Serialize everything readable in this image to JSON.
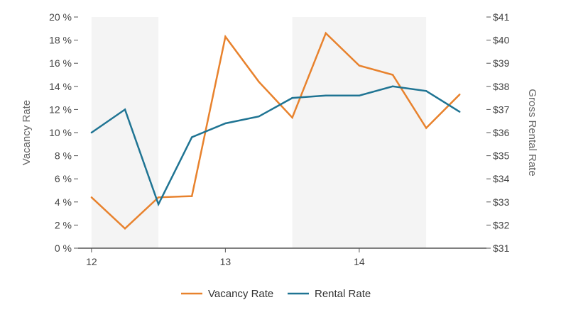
{
  "chart_data": {
    "type": "line",
    "x": [
      12,
      12.25,
      12.5,
      12.75,
      13,
      13.25,
      13.5,
      13.75,
      14,
      14.25,
      14.5,
      14.75
    ],
    "xticks": [
      12,
      13,
      14
    ],
    "xtick_labels": [
      "12",
      "13",
      "14"
    ],
    "xlim": [
      11.9,
      14.95
    ],
    "shaded_bands": [
      [
        12,
        12.5
      ],
      [
        13.5,
        14.5
      ]
    ],
    "ylabel": "Vacancy Rate",
    "ylim": [
      0,
      20
    ],
    "yticks": [
      0,
      2,
      4,
      6,
      8,
      10,
      12,
      14,
      16,
      18,
      20
    ],
    "ytick_labels": [
      "0 %",
      "2 %",
      "4 %",
      "6 %",
      "8 %",
      "10 %",
      "12 %",
      "14 %",
      "16 %",
      "18 %",
      "20 %"
    ],
    "y2label": "Gross Rental Rate",
    "y2lim": [
      31,
      41
    ],
    "y2ticks": [
      31,
      32,
      33,
      34,
      35,
      36,
      37,
      38,
      39,
      40,
      41
    ],
    "y2tick_labels": [
      "$31",
      "$32",
      "$33",
      "$34",
      "$35",
      "$36",
      "$37",
      "$38",
      "$39",
      "$40",
      "$41"
    ],
    "series": [
      {
        "name": "Vacancy Rate",
        "axis": "left",
        "color": "#E8822D",
        "values": [
          4.4,
          1.7,
          4.4,
          4.5,
          18.3,
          14.4,
          11.3,
          18.6,
          15.8,
          15.0,
          10.4,
          13.3
        ]
      },
      {
        "name": "Rental Rate",
        "axis": "right",
        "color": "#1F7493",
        "values": [
          36.0,
          37.0,
          32.9,
          35.8,
          36.4,
          36.7,
          37.5,
          37.6,
          37.6,
          38.0,
          37.8,
          36.9
        ]
      }
    ],
    "grid": false,
    "legend_position": "bottom"
  }
}
